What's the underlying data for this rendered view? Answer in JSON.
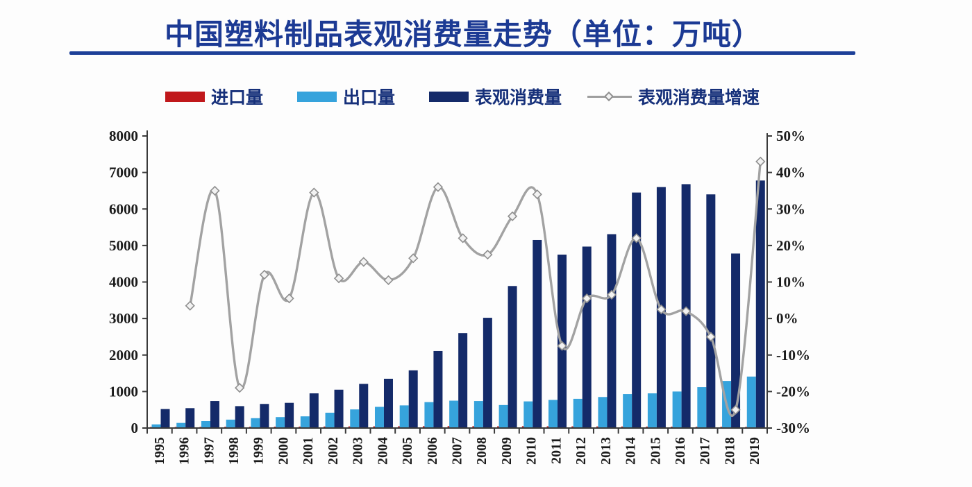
{
  "title": {
    "text": "中国塑料制品表观消费量走势（单位：万吨）"
  },
  "legend": {
    "items": [
      {
        "label": "进口量",
        "series": "import",
        "marker": "bar-swatch"
      },
      {
        "label": "出口量",
        "series": "export",
        "marker": "bar-swatch"
      },
      {
        "label": "表观消费量",
        "series": "consumption",
        "marker": "bar-swatch"
      },
      {
        "label": "表观消费量增速",
        "series": "growth",
        "marker": "line-diamond"
      }
    ]
  },
  "colors": {
    "title": "#1c3a94",
    "underline": "#1d4098",
    "import_bar": "#c0181b",
    "export_bar": "#36a3dc",
    "consumption_bar": "#142a69",
    "growth_line": "#a2a2a2",
    "marker_fill": "#f2f2f2",
    "marker_stroke": "#8f8f8f",
    "axis": "#3a3a3a",
    "tick_text": "#1b1b1b",
    "background": "#fdfdfd"
  },
  "chart_data": {
    "type": "bar",
    "subtype": "grouped-bars-with-growth-line",
    "title": "中国塑料制品表观消费量走势（单位：万吨）",
    "unit": "万吨",
    "categories": [
      "1995",
      "1996",
      "1997",
      "1998",
      "1999",
      "2000",
      "2001",
      "2002",
      "2003",
      "2004",
      "2005",
      "2006",
      "2007",
      "2008",
      "2009",
      "2010",
      "2011",
      "2012",
      "2013",
      "2014",
      "2015",
      "2016",
      "2017",
      "2018",
      "2019"
    ],
    "series": [
      {
        "name": "进口量",
        "type": "bar",
        "axis": "left",
        "values": [
          28,
          30,
          32,
          35,
          36,
          38,
          40,
          42,
          45,
          46,
          48,
          50,
          52,
          50,
          48,
          50,
          48,
          46,
          44,
          42,
          40,
          38,
          36,
          34,
          32
        ]
      },
      {
        "name": "出口量",
        "type": "bar",
        "axis": "left",
        "values": [
          100,
          140,
          190,
          230,
          270,
          300,
          320,
          420,
          510,
          580,
          620,
          710,
          750,
          740,
          630,
          730,
          770,
          800,
          850,
          930,
          950,
          1000,
          1120,
          1290,
          1410
        ]
      },
      {
        "name": "表观消费量",
        "type": "bar",
        "axis": "left",
        "values": [
          520,
          545,
          740,
          600,
          660,
          690,
          950,
          1050,
          1210,
          1350,
          1580,
          2110,
          2600,
          3020,
          3890,
          5150,
          4750,
          4970,
          5310,
          6450,
          6600,
          6680,
          6400,
          4780,
          6780
        ]
      },
      {
        "name": "表观消费量增速",
        "type": "line",
        "axis": "right",
        "unit": "%",
        "values": [
          null,
          3.5,
          35,
          -19,
          12,
          5.5,
          34.5,
          11,
          15.5,
          10.5,
          16.5,
          36,
          22,
          17.5,
          28,
          34,
          -7.5,
          5.5,
          6.5,
          22,
          2.5,
          2,
          -5,
          -25,
          43
        ]
      }
    ],
    "left_axis": {
      "min": 0,
      "max": 8000,
      "step": 1000,
      "ticks": [
        "0",
        "1000",
        "2000",
        "3000",
        "4000",
        "5000",
        "6000",
        "7000",
        "8000"
      ]
    },
    "right_axis": {
      "min": -30,
      "max": 50,
      "step": 10,
      "ticks": [
        "-30%",
        "-20%",
        "-10%",
        "0%",
        "10%",
        "20%",
        "30%",
        "40%",
        "50%"
      ]
    },
    "grid": false,
    "legend_position": "top"
  }
}
